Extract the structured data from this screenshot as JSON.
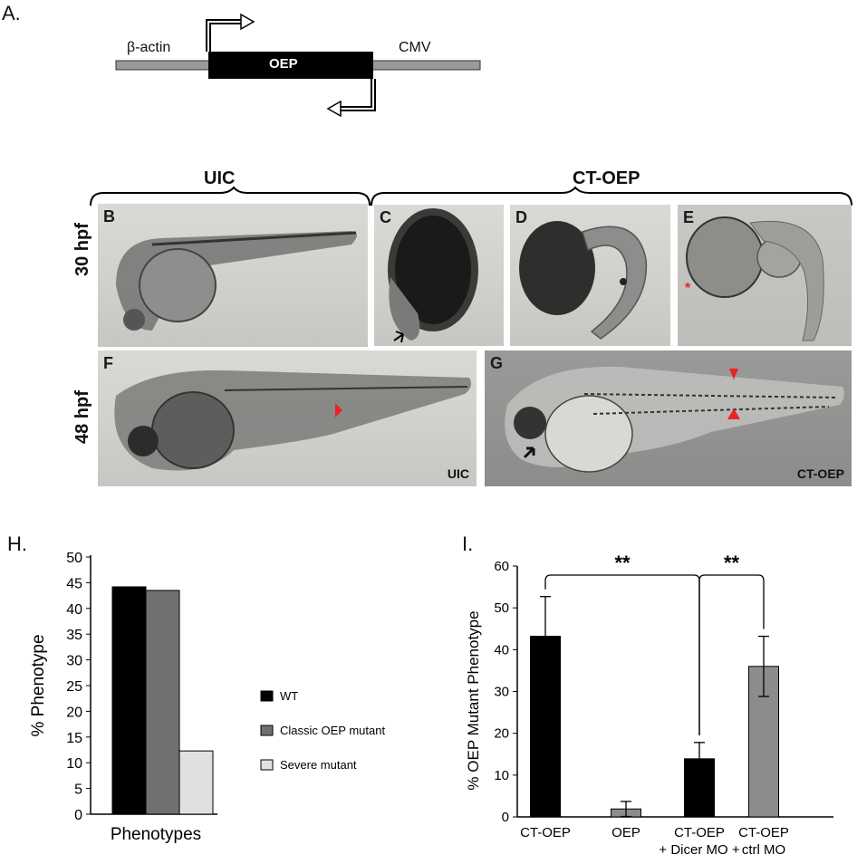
{
  "panel_a": {
    "letter": "A.",
    "left_promoter": "β-actin",
    "gene": "OEP",
    "right_promoter": "CMV"
  },
  "groups": {
    "uic": "UIC",
    "ct_oep": "CT-OEP"
  },
  "rows": {
    "row1": "30 hpf",
    "row2": "48 hpf"
  },
  "photos": {
    "b": "B",
    "c": "C",
    "d": "D",
    "e": "E",
    "f": "F",
    "g": "G",
    "f_corner": "UIC",
    "g_corner": "CT-OEP",
    "e_mark": "*"
  },
  "chart_h_letter": "H.",
  "chart_i_letter": "I.",
  "colors": {
    "black": "#000000",
    "gray": "#707070",
    "light": "#e0e0e0",
    "arrowhead_red": "#e8242b"
  },
  "chart_data": [
    {
      "type": "bar",
      "xlabel": "Phenotypes",
      "ylabel": "% Phenotype",
      "ylim": [
        0,
        50
      ],
      "yticks": [
        0,
        5,
        10,
        15,
        20,
        25,
        30,
        35,
        40,
        45,
        50
      ],
      "series": [
        {
          "name": "WT",
          "values": [
            44.2
          ],
          "color": "#000000"
        },
        {
          "name": "Classic OEP mutant",
          "values": [
            43.5
          ],
          "color": "#707070"
        },
        {
          "name": "Severe mutant",
          "values": [
            12.3
          ],
          "color": "#e0e0e0"
        }
      ],
      "legend_position": "right"
    },
    {
      "type": "bar",
      "ylabel": "% OEP Mutant Phenotype",
      "ylim": [
        0,
        60
      ],
      "yticks": [
        0,
        10,
        20,
        30,
        40,
        50,
        60
      ],
      "categories": [
        "CT-OEP",
        "OEP",
        "CT-OEP\n+ Dicer MO +",
        "CT-OEP\nctrl MO"
      ],
      "category_lines": [
        [
          "CT-OEP"
        ],
        [
          "OEP"
        ],
        [
          "CT-OEP",
          "+ Dicer MO +"
        ],
        [
          "CT-OEP",
          "ctrl MO"
        ]
      ],
      "values": [
        43.2,
        1.9,
        13.9,
        36.0
      ],
      "errors": [
        9.5,
        1.8,
        3.9,
        7.2
      ],
      "colors": [
        "#000000",
        "#8c8c8c",
        "#000000",
        "#8c8c8c"
      ],
      "significance": [
        {
          "from": 0,
          "to": 2,
          "label": "**"
        },
        {
          "from": 2,
          "to": 3,
          "label": "**"
        }
      ]
    }
  ]
}
